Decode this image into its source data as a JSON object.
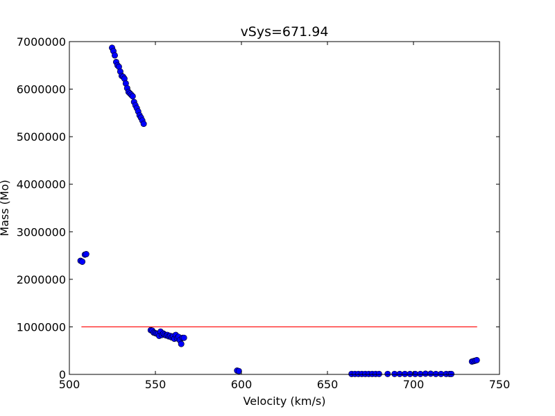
{
  "chart_data": {
    "type": "scatter",
    "title": "vSys=671.94",
    "xlabel": "Velocity (km/s)",
    "ylabel": "Mass (Mo)",
    "xlim": [
      500,
      750
    ],
    "ylim": [
      0,
      7000000
    ],
    "xticks": [
      500,
      550,
      600,
      650,
      700,
      750
    ],
    "yticks": [
      0,
      1000000,
      2000000,
      3000000,
      4000000,
      5000000,
      6000000,
      7000000
    ],
    "grid": false,
    "legend": "none",
    "colors": {
      "points": "#0000ff",
      "point_edge": "#000000",
      "line": "#ff0000"
    },
    "series": [
      {
        "marker": "circle",
        "points": [
          [
            506.5,
            2390000
          ],
          [
            507.5,
            2370000
          ],
          [
            509.0,
            2520000
          ],
          [
            509.8,
            2530000
          ],
          [
            524.8,
            6870000
          ],
          [
            525.6,
            6800000
          ],
          [
            526.4,
            6710000
          ],
          [
            527.2,
            6570000
          ],
          [
            528.0,
            6500000
          ],
          [
            528.8,
            6470000
          ],
          [
            529.6,
            6370000
          ],
          [
            530.4,
            6280000
          ],
          [
            531.2,
            6260000
          ],
          [
            532.0,
            6220000
          ],
          [
            532.8,
            6120000
          ],
          [
            533.6,
            6020000
          ],
          [
            534.4,
            5940000
          ],
          [
            535.2,
            5910000
          ],
          [
            536.0,
            5880000
          ],
          [
            536.8,
            5850000
          ],
          [
            537.6,
            5730000
          ],
          [
            538.4,
            5660000
          ],
          [
            539.2,
            5600000
          ],
          [
            540.0,
            5530000
          ],
          [
            540.8,
            5450000
          ],
          [
            541.6,
            5400000
          ],
          [
            542.4,
            5340000
          ],
          [
            543.2,
            5270000
          ],
          [
            547.3,
            930000
          ],
          [
            548.2,
            920000
          ],
          [
            549.0,
            880000
          ],
          [
            549.8,
            870000
          ],
          [
            550.6,
            860000
          ],
          [
            551.4,
            850000
          ],
          [
            552.2,
            810000
          ],
          [
            553.0,
            900000
          ],
          [
            553.8,
            830000
          ],
          [
            554.6,
            860000
          ],
          [
            555.4,
            840000
          ],
          [
            556.2,
            820000
          ],
          [
            557.0,
            830000
          ],
          [
            557.8,
            800000
          ],
          [
            558.6,
            810000
          ],
          [
            559.4,
            780000
          ],
          [
            560.2,
            800000
          ],
          [
            561.0,
            750000
          ],
          [
            561.8,
            830000
          ],
          [
            562.6,
            760000
          ],
          [
            563.4,
            790000
          ],
          [
            564.2,
            720000
          ],
          [
            565.0,
            640000
          ],
          [
            565.8,
            770000
          ],
          [
            566.6,
            770000
          ],
          [
            597.5,
            80000
          ],
          [
            598.5,
            70000
          ],
          [
            664.0,
            10000
          ],
          [
            666.0,
            10000
          ],
          [
            668.0,
            10000
          ],
          [
            670.0,
            10000
          ],
          [
            672.0,
            10000
          ],
          [
            674.0,
            10000
          ],
          [
            676.0,
            10000
          ],
          [
            678.0,
            10000
          ],
          [
            680.0,
            10000
          ],
          [
            685.0,
            10000
          ],
          [
            689.0,
            10000
          ],
          [
            692.0,
            10000
          ],
          [
            695.0,
            10000
          ],
          [
            698.0,
            10000
          ],
          [
            701.0,
            10000
          ],
          [
            704.0,
            10000
          ],
          [
            707.0,
            15000
          ],
          [
            710.0,
            15000
          ],
          [
            713.0,
            10000
          ],
          [
            716.0,
            10000
          ],
          [
            719.0,
            10000
          ],
          [
            721.0,
            10000
          ],
          [
            722.0,
            10000
          ],
          [
            734.0,
            270000
          ],
          [
            735.0,
            280000
          ],
          [
            736.0,
            290000
          ],
          [
            736.8,
            300000
          ]
        ]
      },
      {
        "marker": "line",
        "points": [
          [
            507,
            1000000
          ],
          [
            737,
            1000000
          ]
        ]
      }
    ]
  }
}
